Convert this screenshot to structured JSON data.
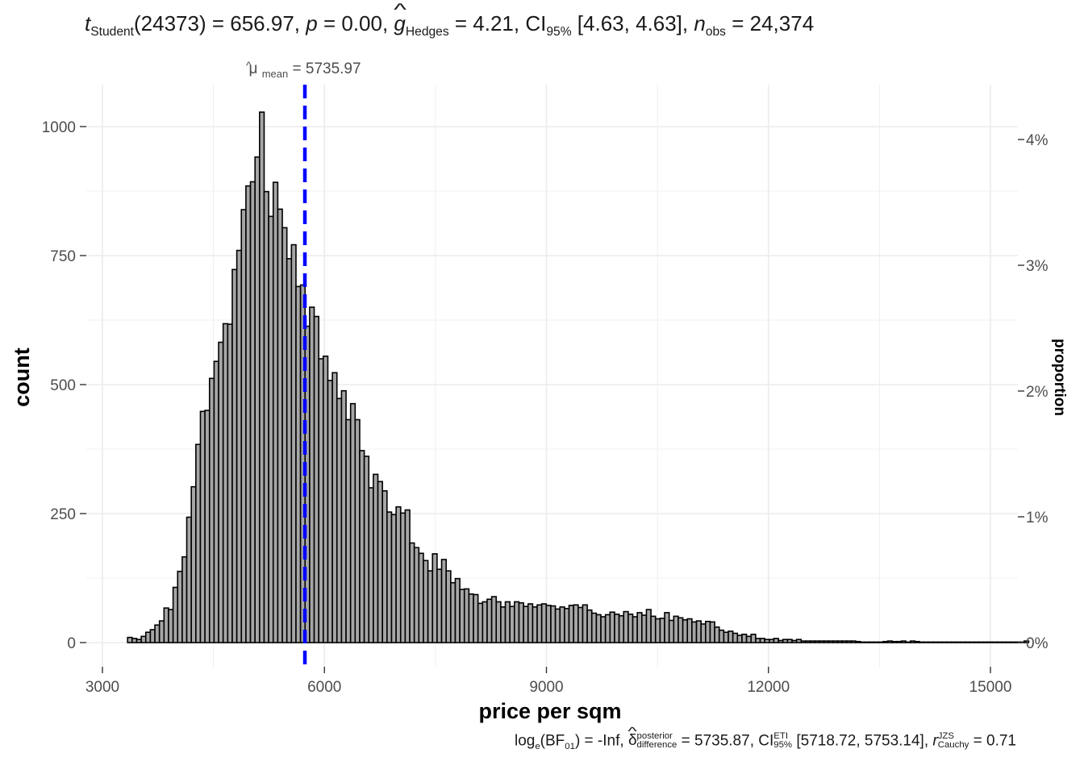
{
  "subtitle": {
    "t_label": "t",
    "t_sub": "Student",
    "t_df": "(24373)",
    "t_value": "= 656.97,",
    "p_label": "p",
    "p_value": "= 0.00,",
    "g_label": "g",
    "g_sub": "Hedges",
    "g_value": "= 4.21,",
    "ci_label": "CI",
    "ci_sub": "95%",
    "ci_value": "[4.63, 4.63],",
    "n_label": "n",
    "n_sub": "obs",
    "n_value": "= 24,374"
  },
  "caption": {
    "log_label": "log",
    "log_sub": "e",
    "bf_label": "(BF",
    "bf_sub": "01",
    "bf_value": ") = -Inf,",
    "delta_label": "δ",
    "delta_sup": "posterior",
    "delta_sub": "difference",
    "delta_value": "= 5735.87,",
    "ci_label": "CI",
    "ci_sup": "ETI",
    "ci_sub": "95%",
    "ci_value": "[5718.72, 5753.14],",
    "r_label": "r",
    "r_sup": "JZS",
    "r_sub": "Cauchy",
    "r_value": "= 0.71"
  },
  "mean_label": {
    "symbol": "μ",
    "sub": "mean",
    "value": "= 5735.97"
  },
  "colors": {
    "bar_fill": "#a6a6a6",
    "bar_stroke": "#000000",
    "mean_line": "#0000ff",
    "grid": "#ebebeb",
    "text": "#4d4d4d"
  },
  "chart_data": {
    "type": "bar",
    "xlabel": "price per sqm",
    "ylabel": "count",
    "y2label": "proportion",
    "xlim": [
      3000,
      15000
    ],
    "ylim": [
      0,
      1050
    ],
    "grid": true,
    "x_ticks": [
      3000,
      6000,
      9000,
      12000,
      15000
    ],
    "x_tick_labels": [
      "3000",
      "6000",
      "9000",
      "12000",
      "15000"
    ],
    "y_ticks": [
      0,
      250,
      500,
      750,
      1000
    ],
    "y_tick_labels": [
      "0",
      "250",
      "500",
      "750",
      "1000"
    ],
    "y2_ticks": [
      0,
      0.01,
      0.02,
      0.03,
      0.04
    ],
    "y2_tick_labels": [
      "0%",
      "1%",
      "2%",
      "3%",
      "4%"
    ],
    "total_n": 24374,
    "mean": 5735.97,
    "bin_start": 3340,
    "bin_width": 61.5,
    "counts": [
      10,
      8,
      6,
      12,
      20,
      25,
      34,
      42,
      67,
      64,
      107,
      138,
      166,
      243,
      302,
      384,
      448,
      450,
      512,
      545,
      582,
      618,
      617,
      723,
      760,
      839,
      885,
      893,
      941,
      1028,
      874,
      826,
      892,
      840,
      804,
      744,
      771,
      690,
      693,
      613,
      650,
      632,
      550,
      555,
      508,
      523,
      473,
      488,
      432,
      463,
      432,
      372,
      361,
      300,
      326,
      312,
      294,
      253,
      248,
      263,
      251,
      257,
      193,
      184,
      173,
      159,
      139,
      172,
      142,
      161,
      139,
      116,
      124,
      103,
      104,
      94,
      93,
      76,
      79,
      84,
      89,
      79,
      69,
      79,
      70,
      79,
      77,
      70,
      75,
      69,
      73,
      75,
      72,
      71,
      65,
      69,
      66,
      72,
      73,
      68,
      73,
      63,
      57,
      54,
      50,
      54,
      59,
      55,
      52,
      60,
      55,
      50,
      58,
      53,
      64,
      51,
      46,
      47,
      58,
      43,
      51,
      48,
      44,
      46,
      40,
      42,
      36,
      41,
      40,
      30,
      24,
      20,
      22,
      18,
      14,
      16,
      12,
      16,
      8,
      8,
      6,
      6,
      8,
      4,
      6,
      6,
      4,
      6,
      3,
      3,
      3,
      3,
      3,
      3,
      3,
      3,
      3,
      3,
      3,
      3,
      2,
      1,
      1,
      1,
      1,
      1,
      2,
      3,
      2,
      2,
      3,
      1,
      3,
      2,
      1,
      1,
      1,
      1,
      1,
      1,
      1,
      1,
      1,
      1,
      1,
      1,
      1,
      1,
      1,
      1,
      1,
      1,
      1,
      1,
      1,
      1,
      1,
      3
    ]
  }
}
